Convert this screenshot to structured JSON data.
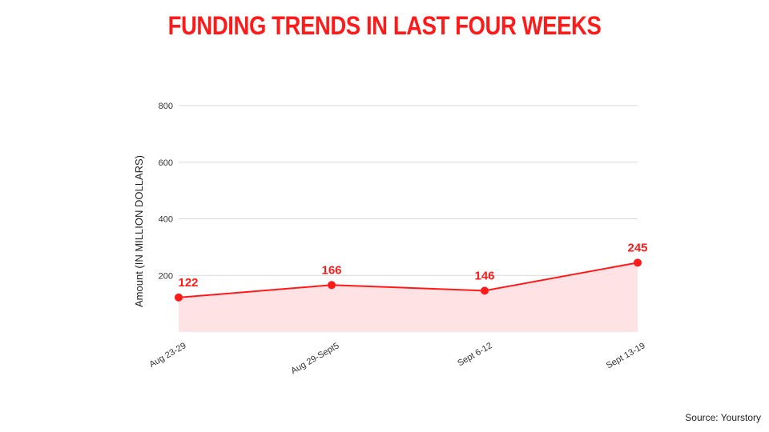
{
  "page": {
    "title": "FUNDING TRENDS IN LAST FOUR WEEKS",
    "source": "Source: Yourstory"
  },
  "chart_data": {
    "type": "line",
    "title": "FUNDING TRENDS IN LAST FOUR WEEKS",
    "xlabel": "",
    "ylabel": "Amount (IN MILLION DOLLARS)",
    "categories": [
      "Aug 23-29",
      "Aug 29-Sept5",
      "Sept 6-12",
      "Sept 13-19"
    ],
    "series": [
      {
        "values": [
          122,
          166,
          146,
          245
        ]
      }
    ],
    "data_labels": [
      "122",
      "166",
      "146",
      "245"
    ],
    "y_ticks": [
      200,
      400,
      600,
      800
    ],
    "ylim": [
      0,
      800
    ],
    "grid": true,
    "legend": "none",
    "area_fill": true,
    "colors": {
      "line": "#ff1a1a",
      "area": "#ffe2e4",
      "grid": "#d9d9d9",
      "title": "#ff1a1a"
    }
  }
}
